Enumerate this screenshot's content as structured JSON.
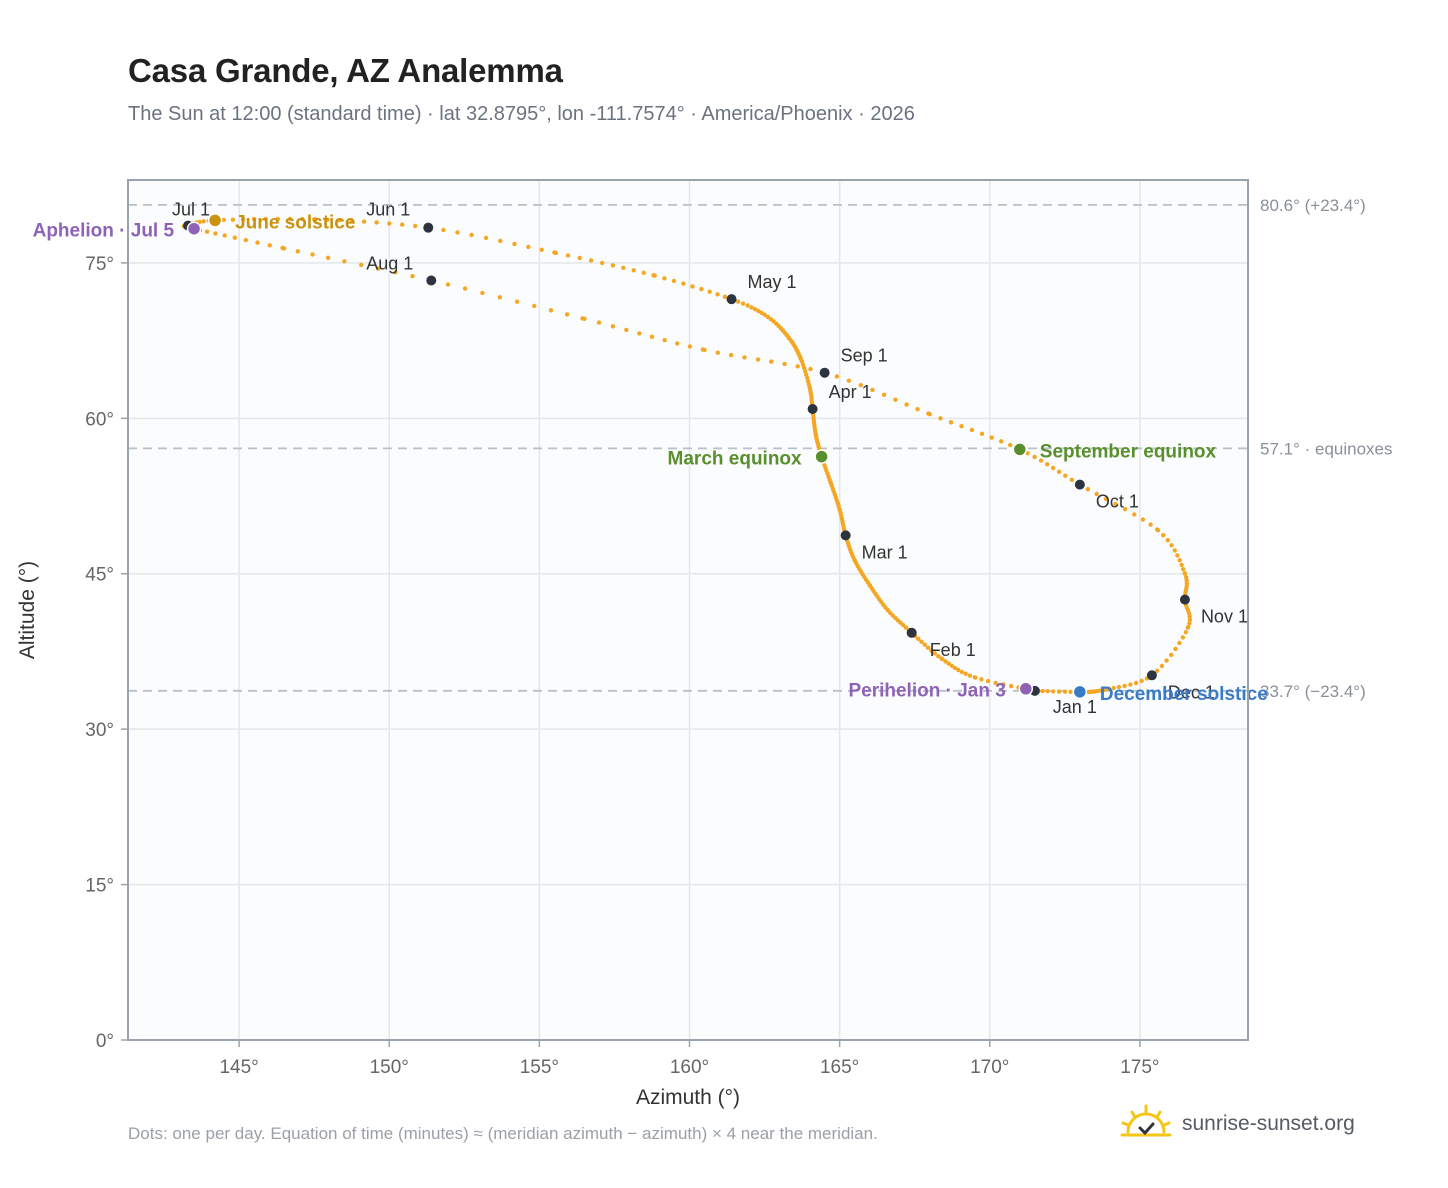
{
  "title": "Casa Grande, AZ Analemma",
  "subtitle": "The Sun at 12:00 (standard time) · lat 32.8795°, lon -111.7574° · America/Phoenix · 2026",
  "footnote": "Dots: one per day. Equation of time (minutes) ≈ (meridian azimuth − azimuth) × 4 near the meridian.",
  "brand": {
    "name": "sunrise-sunset.org",
    "icon": "sun-check-icon"
  },
  "colors": {
    "curve": "#f5a623",
    "month_dot": "#2d3440",
    "equinox": "#5a8f2e",
    "june_solstice": "#c8930f",
    "december_solstice": "#3a7bc8",
    "apsis": "#8e63b5",
    "frame": "#9aa3ad",
    "grid": "#e3e7ec",
    "ref_line": "#b9c0c8",
    "plot_bg": "#fafcfe"
  },
  "chart_data": {
    "type": "scatter",
    "title": "Casa Grande, AZ Analemma",
    "xlabel": "Azimuth (°)",
    "ylabel": "Altitude (°)",
    "xlim": [
      141.3,
      178.6
    ],
    "ylim": [
      0,
      83
    ],
    "xticks": [
      145,
      150,
      155,
      160,
      165,
      170,
      175
    ],
    "yticks": [
      0,
      15,
      30,
      45,
      60,
      75
    ],
    "grid": true,
    "month_points": [
      {
        "label": "Jan 1",
        "az": 171.5,
        "alt": 33.7
      },
      {
        "label": "Feb 1",
        "az": 167.4,
        "alt": 39.3
      },
      {
        "label": "Mar 1",
        "az": 165.2,
        "alt": 48.7
      },
      {
        "label": "Apr 1",
        "az": 164.1,
        "alt": 60.9
      },
      {
        "label": "May 1",
        "az": 161.4,
        "alt": 71.5
      },
      {
        "label": "Jun 1",
        "az": 151.3,
        "alt": 78.4
      },
      {
        "label": "Jul 1",
        "az": 143.3,
        "alt": 78.6
      },
      {
        "label": "Aug 1",
        "az": 151.4,
        "alt": 73.3
      },
      {
        "label": "Sep 1",
        "az": 164.5,
        "alt": 64.4
      },
      {
        "label": "Oct 1",
        "az": 173.0,
        "alt": 53.6
      },
      {
        "label": "Nov 1",
        "az": 176.5,
        "alt": 42.5
      },
      {
        "label": "Dec 1",
        "az": 175.4,
        "alt": 35.2
      }
    ],
    "events": [
      {
        "label": "March equinox",
        "az": 164.4,
        "alt": 56.3,
        "kind": "equinox"
      },
      {
        "label": "September equinox",
        "az": 171.0,
        "alt": 57.0,
        "kind": "equinox"
      },
      {
        "label": "June solstice",
        "az": 144.2,
        "alt": 79.1,
        "kind": "june_solstice"
      },
      {
        "label": "December solstice",
        "az": 173.0,
        "alt": 33.6,
        "kind": "december_solstice"
      },
      {
        "label": "Perihelion · Jan 3",
        "az": 171.2,
        "alt": 33.9,
        "kind": "apsis"
      },
      {
        "label": "Aphelion · Jul 5",
        "az": 143.5,
        "alt": 78.3,
        "kind": "apsis"
      }
    ],
    "reference_lines": [
      {
        "alt": 80.6,
        "label": "80.6° (+23.4°)"
      },
      {
        "alt": 57.1,
        "label": "57.1° · equinoxes"
      },
      {
        "alt": 33.7,
        "label": "33.7° (−23.4°)"
      }
    ],
    "daily_path": [
      [
        171.5,
        33.7
      ],
      [
        169.5,
        35.0
      ],
      [
        168.4,
        36.8
      ],
      [
        167.4,
        39.3
      ],
      [
        166.6,
        41.5
      ],
      [
        166.0,
        43.9
      ],
      [
        165.5,
        46.3
      ],
      [
        165.2,
        48.7
      ],
      [
        165.0,
        51.2
      ],
      [
        164.7,
        53.8
      ],
      [
        164.4,
        56.3
      ],
      [
        164.2,
        58.5
      ],
      [
        164.1,
        60.9
      ],
      [
        164.0,
        63.0
      ],
      [
        163.7,
        65.8
      ],
      [
        163.3,
        67.8
      ],
      [
        162.6,
        69.8
      ],
      [
        161.4,
        71.5
      ],
      [
        158.8,
        73.8
      ],
      [
        155.5,
        76.0
      ],
      [
        151.3,
        78.4
      ],
      [
        147.5,
        79.2
      ],
      [
        144.2,
        79.1
      ],
      [
        143.3,
        78.6
      ],
      [
        143.5,
        78.3
      ],
      [
        146.5,
        76.4
      ],
      [
        151.4,
        73.3
      ],
      [
        156.5,
        69.6
      ],
      [
        160.5,
        66.6
      ],
      [
        164.5,
        64.4
      ],
      [
        168.0,
        60.4
      ],
      [
        171.0,
        57.0
      ],
      [
        173.0,
        53.6
      ],
      [
        175.6,
        49.2
      ],
      [
        176.5,
        45.0
      ],
      [
        176.5,
        42.5
      ],
      [
        176.6,
        39.8
      ],
      [
        175.4,
        35.2
      ],
      [
        173.8,
        33.8
      ],
      [
        173.0,
        33.6
      ],
      [
        171.5,
        33.7
      ]
    ]
  }
}
